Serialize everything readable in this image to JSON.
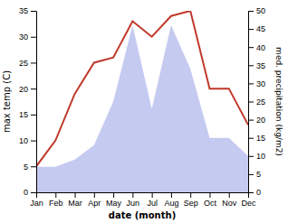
{
  "chart_data": {
    "type": "line",
    "xlabel": "date (month)",
    "ylabel": "max temp (C)",
    "y2label": "med. precipitation (kg/m2)",
    "categories": [
      "Jan",
      "Feb",
      "Mar",
      "Apr",
      "May",
      "Jun",
      "Jul",
      "Aug",
      "Sep",
      "Oct",
      "Nov",
      "Dec"
    ],
    "series": [
      {
        "type": "area",
        "axis": "y2",
        "color": "#c5caf0",
        "values": [
          7,
          7,
          9,
          13,
          25,
          46,
          23,
          46,
          34,
          15,
          15,
          10
        ]
      },
      {
        "type": "line",
        "color": "#c0392b",
        "values": [
          5,
          10,
          19,
          25,
          26,
          33,
          30,
          34,
          35,
          20,
          20,
          13
        ]
      }
    ],
    "ylim": [
      0,
      35
    ],
    "yticks": [
      0,
      5,
      10,
      15,
      20,
      25,
      30,
      35
    ],
    "y2lim": [
      0,
      50
    ],
    "y2ticks": [
      0,
      5,
      10,
      15,
      20,
      25,
      30,
      35,
      40,
      45,
      50
    ],
    "grid": false
  }
}
